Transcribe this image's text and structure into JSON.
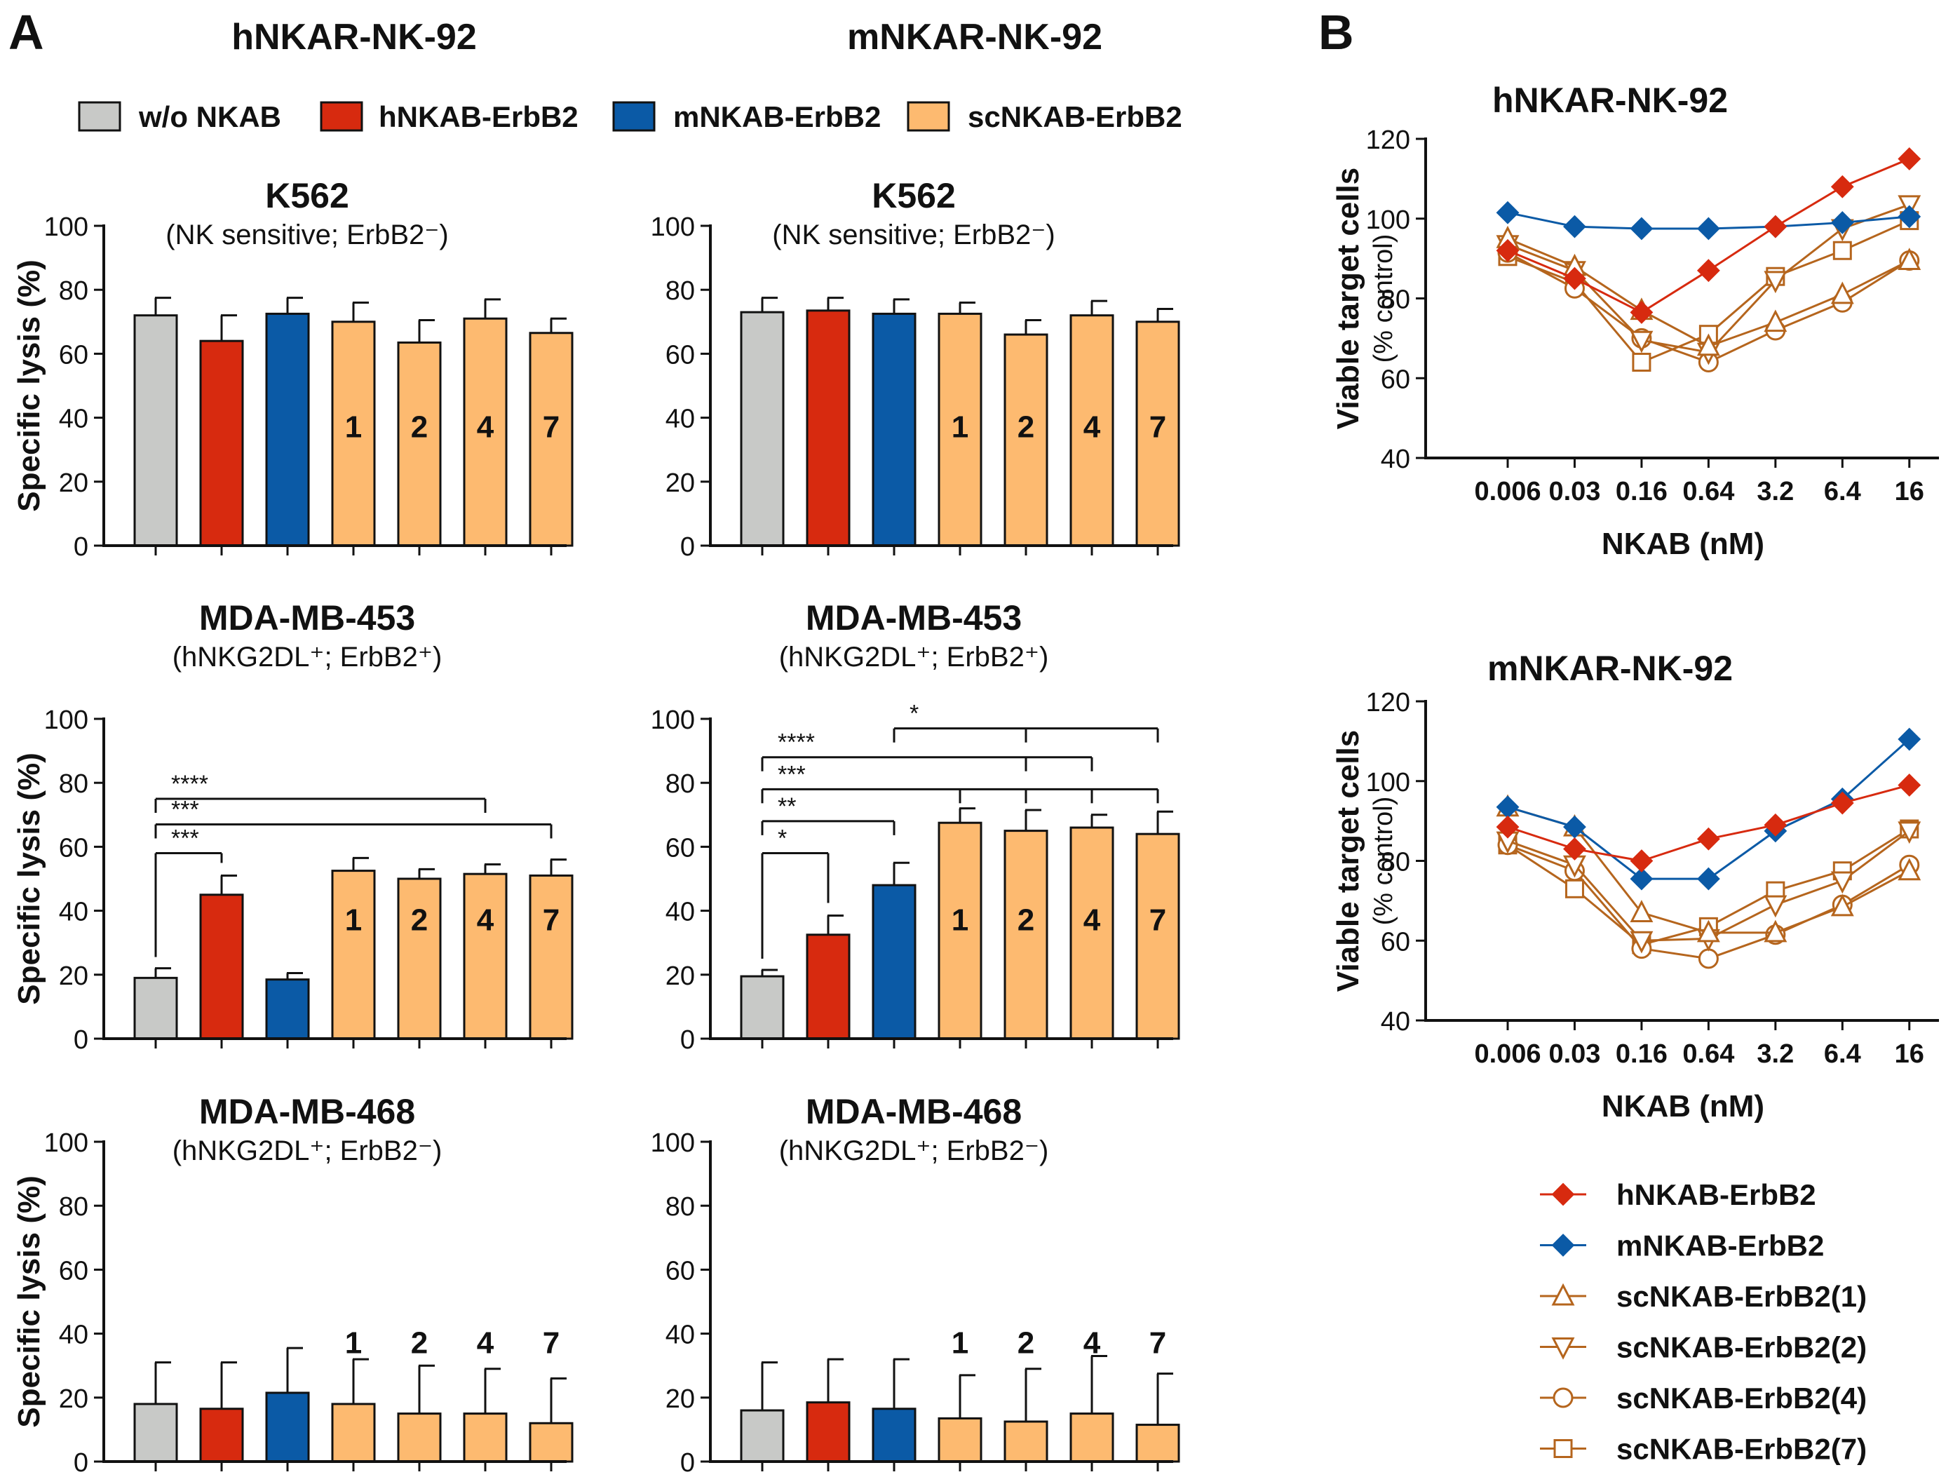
{
  "panel_labels": {
    "a": "A",
    "b": "B"
  },
  "headers": {
    "left": "hNKAR-NK-92",
    "right": "mNKAR-NK-92"
  },
  "legend_a": [
    {
      "label": "w/o NKAB",
      "color": "#c8c9c7"
    },
    {
      "label": "hNKAB-ErbB2",
      "color": "#d72a0f"
    },
    {
      "label": "mNKAB-ErbB2",
      "color": "#0b5aa6"
    },
    {
      "label": "scNKAB-ErbB2",
      "color": "#fdba70"
    }
  ],
  "colors": {
    "w/o": "#c8c9c7",
    "h": "#d72a0f",
    "m": "#0b5aa6",
    "sc": "#fdba70",
    "sc_line": "#b5651d"
  },
  "bar_labels": [
    "1",
    "2",
    "4",
    "7"
  ],
  "chart_data": [
    {
      "type": "bar",
      "id": "a-k562-h",
      "title": "K562",
      "subtitle": "(NK sensitive; ErbB2⁻)",
      "ylabel": "Specific lysis  (%)",
      "ylim": [
        0,
        100
      ],
      "yticks": [
        "0",
        "20",
        "40",
        "60",
        "80",
        "100"
      ],
      "categories": [
        "w/o NKAB",
        "hNKAB-ErbB2",
        "mNKAB-ErbB2",
        "scNKAB-ErbB2(1)",
        "scNKAB-ErbB2(2)",
        "scNKAB-ErbB2(4)",
        "scNKAB-ErbB2(7)"
      ],
      "values": [
        72,
        64,
        72.5,
        70,
        63.5,
        71,
        66.5
      ],
      "errors": [
        5.5,
        8,
        5,
        6,
        7,
        6,
        4.5
      ],
      "significance": []
    },
    {
      "type": "bar",
      "id": "a-k562-m",
      "title": "K562",
      "subtitle": "(NK sensitive; ErbB2⁻)",
      "ylabel": "",
      "ylim": [
        0,
        100
      ],
      "yticks": [
        "0",
        "20",
        "40",
        "60",
        "80",
        "100"
      ],
      "categories": [
        "w/o NKAB",
        "hNKAB-ErbB2",
        "mNKAB-ErbB2",
        "scNKAB-ErbB2(1)",
        "scNKAB-ErbB2(2)",
        "scNKAB-ErbB2(4)",
        "scNKAB-ErbB2(7)"
      ],
      "values": [
        73,
        73.5,
        72.5,
        72.5,
        66,
        72,
        70
      ],
      "errors": [
        4.5,
        4,
        4.5,
        3.5,
        4.5,
        4.5,
        4
      ],
      "significance": []
    },
    {
      "type": "bar",
      "id": "a-453-h",
      "title": "MDA-MB-453",
      "subtitle": "(hNKG2DL⁺; ErbB2⁺)",
      "ylabel": "Specific lysis  (%)",
      "ylim": [
        0,
        100
      ],
      "yticks": [
        "0",
        "20",
        "40",
        "60",
        "80",
        "100"
      ],
      "categories": [
        "w/o NKAB",
        "hNKAB-ErbB2",
        "mNKAB-ErbB2",
        "scNKAB-ErbB2(1)",
        "scNKAB-ErbB2(2)",
        "scNKAB-ErbB2(4)",
        "scNKAB-ErbB2(7)"
      ],
      "values": [
        19,
        45,
        18.5,
        52.5,
        50,
        51.5,
        51
      ],
      "errors": [
        3,
        6,
        2,
        4,
        3,
        3,
        5
      ],
      "significance": [
        {
          "label": "***",
          "from": 0,
          "to": [
            1
          ],
          "y": 58
        },
        {
          "label": "***",
          "from": 0,
          "to": [
            6
          ],
          "y": 67
        },
        {
          "label": "****",
          "from": 0,
          "to": [
            5
          ],
          "y": 75
        }
      ]
    },
    {
      "type": "bar",
      "id": "a-453-m",
      "title": "MDA-MB-453",
      "subtitle": "(hNKG2DL⁺; ErbB2⁺)",
      "ylabel": "",
      "ylim": [
        0,
        100
      ],
      "yticks": [
        "0",
        "20",
        "40",
        "60",
        "80",
        "100"
      ],
      "categories": [
        "w/o NKAB",
        "hNKAB-ErbB2",
        "mNKAB-ErbB2",
        "scNKAB-ErbB2(1)",
        "scNKAB-ErbB2(2)",
        "scNKAB-ErbB2(4)",
        "scNKAB-ErbB2(7)"
      ],
      "values": [
        19.5,
        32.5,
        48,
        67.5,
        65,
        66,
        64
      ],
      "errors": [
        2,
        6,
        7,
        4.5,
        6.5,
        4,
        7
      ],
      "significance": [
        {
          "label": "*",
          "from": 0,
          "to": [
            1
          ],
          "y": 58
        },
        {
          "label": "**",
          "from": 0,
          "to": [
            2
          ],
          "y": 68
        },
        {
          "label": "***",
          "from": 0,
          "to": [
            3,
            4,
            5,
            6
          ],
          "y": 78
        },
        {
          "label": "****",
          "from": 0,
          "to": [
            4,
            5
          ],
          "y": 88
        },
        {
          "label": "*",
          "from": 2,
          "to": [
            4,
            6
          ],
          "y": 97
        }
      ]
    },
    {
      "type": "bar",
      "id": "a-468-h",
      "title": "MDA-MB-468",
      "subtitle": "(hNKG2DL⁺; ErbB2⁻)",
      "ylabel": "Specific lysis  (%)",
      "ylim": [
        0,
        100
      ],
      "yticks": [
        "0",
        "20",
        "40",
        "60",
        "80",
        "100"
      ],
      "categories": [
        "w/o NKAB",
        "hNKAB-ErbB2",
        "mNKAB-ErbB2",
        "scNKAB-ErbB2(1)",
        "scNKAB-ErbB2(2)",
        "scNKAB-ErbB2(4)",
        "scNKAB-ErbB2(7)"
      ],
      "values": [
        18,
        16.5,
        21.5,
        18,
        15,
        15,
        12
      ],
      "errors": [
        13,
        14.5,
        14,
        14,
        15,
        14,
        14
      ],
      "significance": []
    },
    {
      "type": "bar",
      "id": "a-468-m",
      "title": "MDA-MB-468",
      "subtitle": "(hNKG2DL⁺; ErbB2⁻)",
      "ylabel": "",
      "ylim": [
        0,
        100
      ],
      "yticks": [
        "0",
        "20",
        "40",
        "60",
        "80",
        "100"
      ],
      "categories": [
        "w/o NKAB",
        "hNKAB-ErbB2",
        "mNKAB-ErbB2",
        "scNKAB-ErbB2(1)",
        "scNKAB-ErbB2(2)",
        "scNKAB-ErbB2(4)",
        "scNKAB-ErbB2(7)"
      ],
      "values": [
        16,
        18.5,
        16.5,
        13.5,
        12.5,
        15,
        11.5
      ],
      "errors": [
        15,
        13.5,
        15.5,
        13.5,
        16.5,
        18,
        16
      ],
      "significance": []
    },
    {
      "type": "line",
      "id": "b-h",
      "title": "hNKAR-NK-92",
      "ylabel": "Viable target cells",
      "ylabel2": "(% control)",
      "xlabel": "NKAB  (nM)",
      "ylim": [
        40,
        120
      ],
      "yticks": [
        "40",
        "60",
        "80",
        "100",
        "120"
      ],
      "x": [
        "0.006",
        "0.03",
        "0.16",
        "0.64",
        "3.2",
        "6.4",
        "16"
      ],
      "series": [
        {
          "name": "hNKAB-ErbB2",
          "marker": "diamond",
          "values": [
            92,
            85,
            76.5,
            87,
            98,
            108,
            115
          ]
        },
        {
          "name": "mNKAB-ErbB2",
          "marker": "diamond",
          "values": [
            101.5,
            98,
            97.5,
            97.5,
            98,
            99,
            100.5
          ]
        },
        {
          "name": "scNKAB-ErbB2(1)",
          "marker": "triangle-up",
          "values": [
            95,
            88,
            77,
            68,
            74,
            81,
            89.5
          ]
        },
        {
          "name": "scNKAB-ErbB2(2)",
          "marker": "triangle-down",
          "values": [
            93.5,
            87,
            69.5,
            66.5,
            84.5,
            97.5,
            103.5
          ]
        },
        {
          "name": "scNKAB-ErbB2(4)",
          "marker": "circle",
          "values": [
            91.5,
            82.5,
            70,
            64,
            72,
            79,
            89.5
          ]
        },
        {
          "name": "scNKAB-ErbB2(7)",
          "marker": "square",
          "values": [
            90.5,
            84,
            64,
            71,
            85.5,
            92,
            99.5
          ]
        }
      ]
    },
    {
      "type": "line",
      "id": "b-m",
      "title": "mNKAR-NK-92",
      "ylabel": "Viable target cells",
      "ylabel2": "(% control)",
      "xlabel": "NKAB  (nM)",
      "ylim": [
        40,
        120
      ],
      "yticks": [
        "40",
        "60",
        "80",
        "100",
        "120"
      ],
      "x": [
        "0.006",
        "0.03",
        "0.16",
        "0.64",
        "3.2",
        "6.4",
        "16"
      ],
      "series": [
        {
          "name": "hNKAB-ErbB2",
          "marker": "diamond",
          "values": [
            88.5,
            83,
            80,
            85.5,
            89,
            94.5,
            99
          ]
        },
        {
          "name": "mNKAB-ErbB2",
          "marker": "diamond",
          "values": [
            93.5,
            88.5,
            75.5,
            75.5,
            87.5,
            95.5,
            110.5
          ]
        },
        {
          "name": "scNKAB-ErbB2(1)",
          "marker": "triangle-up",
          "values": [
            93.5,
            88.5,
            67,
            62,
            62,
            68.5,
            77.5
          ]
        },
        {
          "name": "scNKAB-ErbB2(2)",
          "marker": "triangle-down",
          "values": [
            85,
            79,
            60,
            60.5,
            69,
            75,
            87.5
          ]
        },
        {
          "name": "scNKAB-ErbB2(4)",
          "marker": "circle",
          "values": [
            84,
            77.5,
            58,
            55.5,
            61.5,
            69,
            79
          ]
        },
        {
          "name": "scNKAB-ErbB2(7)",
          "marker": "square",
          "values": [
            84,
            73,
            59,
            63.5,
            72.5,
            77.5,
            88
          ]
        }
      ]
    }
  ],
  "legend_b": [
    {
      "label": "hNKAB-ErbB2",
      "marker": "diamond"
    },
    {
      "label": "mNKAB-ErbB2",
      "marker": "diamond"
    },
    {
      "label": "scNKAB-ErbB2(1)",
      "marker": "triangle-up"
    },
    {
      "label": "scNKAB-ErbB2(2)",
      "marker": "triangle-down"
    },
    {
      "label": "scNKAB-ErbB2(4)",
      "marker": "circle"
    },
    {
      "label": "scNKAB-ErbB2(7)",
      "marker": "square"
    }
  ]
}
